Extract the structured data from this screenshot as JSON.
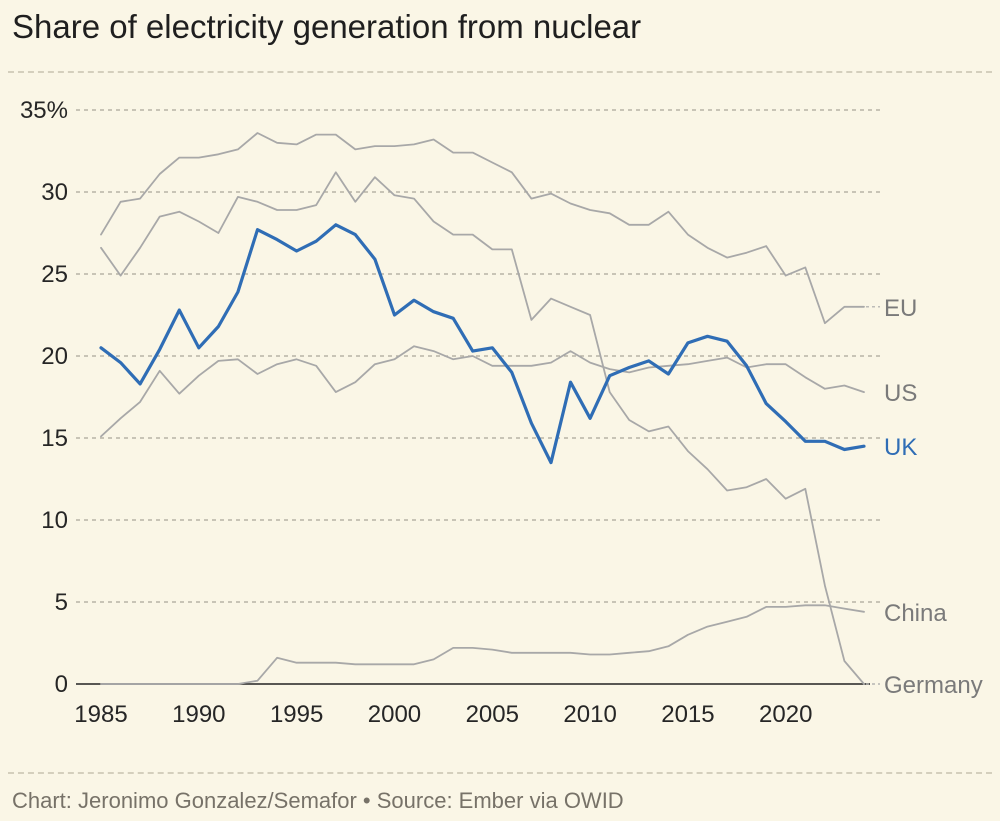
{
  "title": "Share of electricity generation from nuclear",
  "footer": "Chart: Jeronimo Gonzalez/Semafor • Source: Ember via OWID",
  "colors": {
    "background": "#faf6e6",
    "highlight": "#2f6db5",
    "muted": "#a8a8a8",
    "muted_label": "#7a7a7a",
    "grid": "#aaa69a"
  },
  "chart_data": {
    "type": "line",
    "title": "Share of electricity generation from nuclear",
    "xlabel": "",
    "ylabel": "",
    "xlim": [
      1985,
      2024
    ],
    "ylim": [
      0,
      35
    ],
    "x_ticks": [
      1985,
      1990,
      1995,
      2000,
      2005,
      2010,
      2015,
      2020
    ],
    "x_tick_labels": [
      "1985",
      "1990",
      "1995",
      "2000",
      "2005",
      "2010",
      "2015",
      "2020"
    ],
    "y_ticks": [
      0,
      5,
      10,
      15,
      20,
      25,
      30,
      35
    ],
    "y_tick_labels": [
      "0",
      "5",
      "10",
      "15",
      "20",
      "25",
      "30",
      "35%"
    ],
    "grid": "horizontal dashed",
    "legend": "direct labels at right end of lines",
    "x": [
      1985,
      1986,
      1987,
      1988,
      1989,
      1990,
      1991,
      1992,
      1993,
      1994,
      1995,
      1996,
      1997,
      1998,
      1999,
      2000,
      2001,
      2002,
      2003,
      2004,
      2005,
      2006,
      2007,
      2008,
      2009,
      2010,
      2011,
      2012,
      2013,
      2014,
      2015,
      2016,
      2017,
      2018,
      2019,
      2020,
      2021,
      2022,
      2023,
      2024
    ],
    "series": [
      {
        "name": "EU",
        "highlight": false,
        "label_connector": true,
        "values": [
          27.4,
          29.4,
          29.6,
          31.1,
          32.1,
          32.1,
          32.3,
          32.6,
          33.6,
          33,
          32.9,
          33.5,
          33.5,
          32.6,
          32.8,
          32.8,
          32.9,
          33.2,
          32.4,
          32.4,
          31.8,
          31.2,
          29.6,
          29.9,
          29.3,
          28.9,
          28.7,
          28,
          28,
          28.8,
          27.4,
          26.6,
          26,
          26.3,
          26.7,
          24.9,
          25.4,
          22,
          23,
          23
        ]
      },
      {
        "name": "US",
        "highlight": false,
        "label_connector": false,
        "values": [
          15.1,
          16.2,
          17.2,
          19.1,
          17.7,
          18.8,
          19.7,
          19.8,
          18.9,
          19.5,
          19.8,
          19.4,
          17.8,
          18.4,
          19.5,
          19.8,
          20.6,
          20.3,
          19.8,
          20,
          19.4,
          19.4,
          19.4,
          19.6,
          20.3,
          19.6,
          19.2,
          19,
          19.3,
          19.4,
          19.5,
          19.7,
          19.9,
          19.3,
          19.5,
          19.5,
          18.7,
          18,
          18.2,
          17.8
        ]
      },
      {
        "name": "UK",
        "highlight": true,
        "label_connector": false,
        "values": [
          20.5,
          19.6,
          18.3,
          20.4,
          22.8,
          20.5,
          21.8,
          23.9,
          27.7,
          27.1,
          26.4,
          27,
          28,
          27.4,
          25.9,
          22.5,
          23.4,
          22.7,
          22.3,
          20.3,
          20.5,
          19,
          15.9,
          13.5,
          18.4,
          16.2,
          18.8,
          19.3,
          19.7,
          18.9,
          20.8,
          21.2,
          20.9,
          19.4,
          17.1,
          16,
          14.8,
          14.8,
          14.3,
          14.5
        ]
      },
      {
        "name": "China",
        "highlight": false,
        "label_connector": false,
        "values": [
          0,
          0,
          0,
          0,
          0,
          0,
          0,
          0,
          0.2,
          1.6,
          1.3,
          1.3,
          1.3,
          1.2,
          1.2,
          1.2,
          1.2,
          1.5,
          2.2,
          2.2,
          2.1,
          1.9,
          1.9,
          1.9,
          1.9,
          1.8,
          1.8,
          1.9,
          2,
          2.3,
          3,
          3.5,
          3.8,
          4.1,
          4.7,
          4.7,
          4.8,
          4.8,
          4.6,
          4.4
        ]
      },
      {
        "name": "Germany",
        "highlight": false,
        "label_connector": true,
        "values": [
          26.6,
          24.9,
          26.6,
          28.5,
          28.8,
          28.2,
          27.5,
          29.7,
          29.4,
          28.9,
          28.9,
          29.2,
          31.2,
          29.4,
          30.9,
          29.8,
          29.6,
          28.2,
          27.4,
          27.4,
          26.5,
          26.5,
          22.2,
          23.5,
          23,
          22.5,
          17.8,
          16.1,
          15.4,
          15.7,
          14.2,
          13.1,
          11.8,
          12,
          12.5,
          11.3,
          11.9,
          6,
          1.4,
          0
        ]
      }
    ]
  }
}
